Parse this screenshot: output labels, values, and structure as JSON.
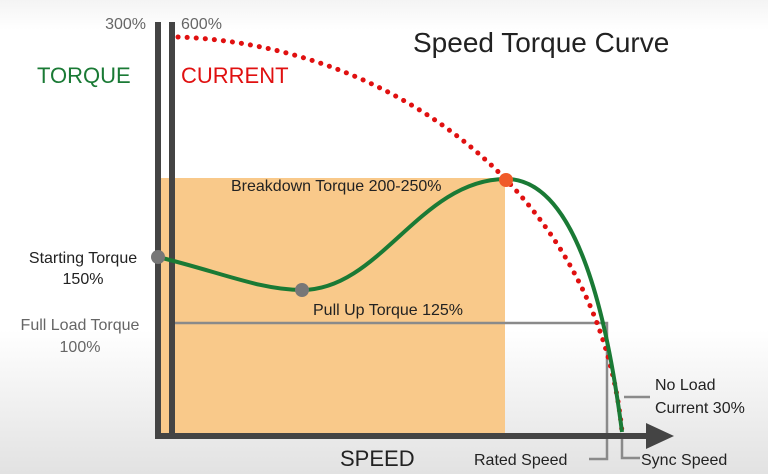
{
  "title": "Speed Torque Curve",
  "axes": {
    "torque_label": "TORQUE",
    "current_label": "CURRENT",
    "torque_max": "300%",
    "current_max": "600%",
    "x_label": "SPEED"
  },
  "annotations": {
    "breakdown": "Breakdown Torque 200-250%",
    "starting_line1": "Starting Torque",
    "starting_line2": "150%",
    "pullup": "Pull Up Torque 125%",
    "fullload_line1": "Full Load Torque",
    "fullload_line2": "100%",
    "noload_line1": "No Load",
    "noload_line2": "Current 30%",
    "rated_speed": "Rated Speed",
    "sync_speed": "Sync Speed"
  },
  "colors": {
    "torque": "#1a7a35",
    "current": "#e01010",
    "region": "#f9c98a",
    "axis": "#444444",
    "guide": "#8a8a8a",
    "breakdown_dot": "#f05a28",
    "point_dot": "#777777"
  }
}
